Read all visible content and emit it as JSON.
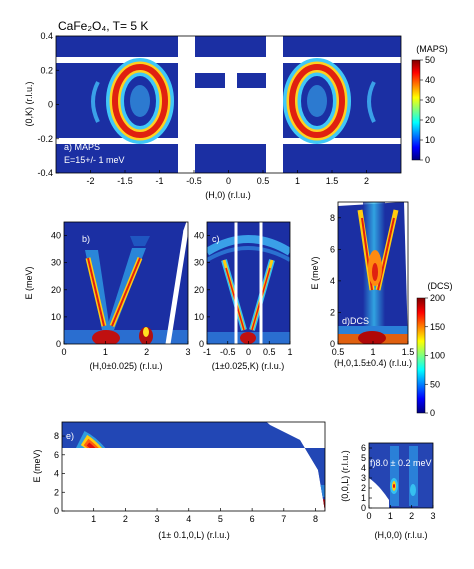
{
  "figure_title": "CaFe₂O₄, T= 5 K",
  "colors": {
    "jet": [
      "#00007f",
      "#0000ff",
      "#007fff",
      "#00ffff",
      "#7fff7f",
      "#ffff00",
      "#ff7f00",
      "#ff0000",
      "#7f0000"
    ],
    "map_bg": "#1b2fa3"
  },
  "chart_data": [
    {
      "id": "a",
      "type": "heatmap",
      "labels": [
        "a) MAPS",
        "E=15+/- 1 meV"
      ],
      "xlabel": "(H,0) (r.l.u.)",
      "ylabel": "(0,K) (r.l.u.)",
      "xlim": [
        -2.5,
        2.5
      ],
      "ylim": [
        -0.4,
        0.4
      ],
      "xticks": [
        "-2",
        "-1.5",
        "-1",
        "-0.5",
        "0",
        "0.5",
        "1",
        "1.5",
        "2"
      ],
      "yticks": [
        "0.4",
        "0.2",
        "0",
        "-0.2",
        "-0.4"
      ],
      "rings": [
        {
          "h": -1,
          "k": 0
        },
        {
          "h": 1,
          "k": 0
        }
      ],
      "colorbar": {
        "label": "(MAPS)",
        "ticks": [
          "50",
          "40",
          "30",
          "20",
          "10",
          "0"
        ],
        "range": [
          0,
          50
        ]
      }
    },
    {
      "id": "b",
      "type": "heatmap",
      "labels": [
        "b)"
      ],
      "xlabel": "(H,0±0.025) (r.l.u.)",
      "ylabel": "E (meV)",
      "xlim": [
        0,
        3
      ],
      "ylim": [
        0,
        45
      ],
      "xticks": [
        "0",
        "1",
        "2",
        "3"
      ],
      "yticks": [
        "40",
        "30",
        "20",
        "10",
        "0"
      ]
    },
    {
      "id": "c",
      "type": "heatmap",
      "labels": [
        "c)"
      ],
      "xlabel": "(1±0.025,K) (r.l.u.)",
      "xlim": [
        -1,
        1
      ],
      "ylim": [
        0,
        45
      ],
      "xticks": [
        "-1",
        "-0.5",
        "0",
        "0.5",
        "1"
      ],
      "yticks": [
        "40",
        "30",
        "20",
        "10",
        "0"
      ]
    },
    {
      "id": "d",
      "type": "heatmap",
      "labels": [
        "d)DCS"
      ],
      "xlabel": "(H,0,1.5±0.4) (r.l.u.)",
      "ylabel": "E (meV)",
      "xlim": [
        0.5,
        1.5
      ],
      "ylim": [
        0,
        9
      ],
      "xticks": [
        "0.5",
        "1",
        "1.5"
      ],
      "yticks": [
        "8",
        "6",
        "4",
        "2",
        "0"
      ],
      "colorbar": {
        "label": "(DCS)",
        "ticks": [
          "200",
          "150",
          "100",
          "50",
          "0"
        ],
        "range": [
          0,
          200
        ]
      }
    },
    {
      "id": "e",
      "type": "heatmap",
      "labels": [
        "e)"
      ],
      "xlabel": "(1± 0.1,0,L) (r.l.u.)",
      "ylabel": "E (meV)",
      "xlim": [
        0,
        8.3
      ],
      "ylim": [
        0,
        9.5
      ],
      "xticks": [
        "1",
        "2",
        "3",
        "4",
        "5",
        "6",
        "7",
        "8"
      ],
      "yticks": [
        "8",
        "6",
        "4",
        "2",
        "0"
      ]
    },
    {
      "id": "f",
      "type": "heatmap",
      "labels": [
        "f)8.0 ± 0.2 meV"
      ],
      "xlabel": "(H,0,0) (r.l.u.)",
      "ylabel": "(0,0,L) (r.l.u.)",
      "xlim": [
        0,
        3
      ],
      "ylim": [
        0,
        6.5
      ],
      "xticks": [
        "0",
        "1",
        "2",
        "3"
      ],
      "yticks": [
        "6",
        "5",
        "4",
        "3",
        "2",
        "1",
        "0"
      ]
    }
  ]
}
